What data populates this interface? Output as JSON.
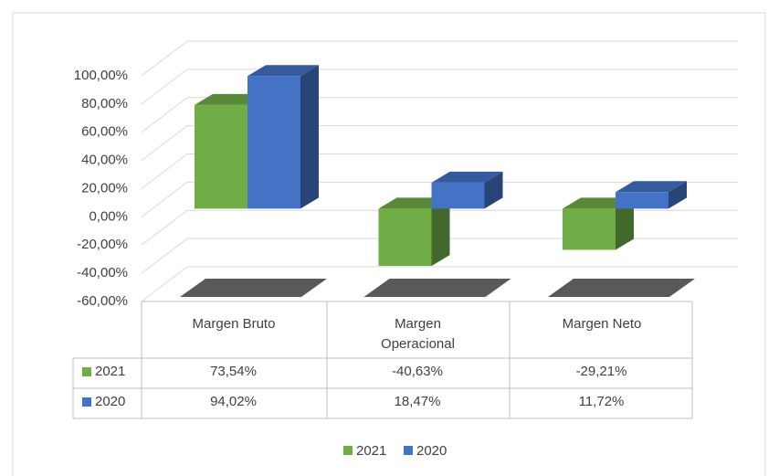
{
  "chart_data": {
    "type": "bar3d",
    "categories": [
      "Margen Bruto",
      "Margen Operacional",
      "Margen Neto"
    ],
    "series": [
      {
        "name": "2021",
        "color": "#70ad47",
        "values": [
          73.54,
          -40.63,
          -29.21
        ],
        "value_labels": [
          "73,54%",
          "-40,63%",
          "-29,21%"
        ]
      },
      {
        "name": "2020",
        "color": "#4472c4",
        "values": [
          94.02,
          18.47,
          11.72
        ],
        "value_labels": [
          "94,02%",
          "18,47%",
          "11,72%"
        ]
      }
    ],
    "ylim": [
      -60,
      100
    ],
    "yticks": [
      {
        "value": -60,
        "label": "-60,00%"
      },
      {
        "value": -40,
        "label": "-40,00%"
      },
      {
        "value": -20,
        "label": "-20,00%"
      },
      {
        "value": 0,
        "label": "0,00%"
      },
      {
        "value": 20,
        "label": "20,00%"
      },
      {
        "value": 40,
        "label": "40,00%"
      },
      {
        "value": 60,
        "label": "60,00%"
      },
      {
        "value": 80,
        "label": "80,00%"
      },
      {
        "value": 100,
        "label": "100,00%"
      }
    ],
    "grid": true,
    "legend": "bottom"
  }
}
